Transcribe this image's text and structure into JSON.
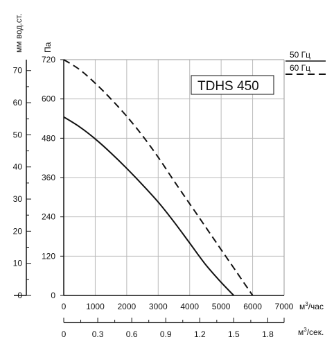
{
  "chart_data": {
    "type": "line",
    "title": "TDHS 450",
    "x": {
      "label": "м³/час",
      "range": [
        0,
        7000
      ],
      "ticks": [
        0,
        1000,
        2000,
        3000,
        4000,
        5000,
        6000,
        7000
      ]
    },
    "x_secondary": {
      "label": "м³/сек.",
      "ticks": [
        "0",
        "0.3",
        "0.6",
        "0.9",
        "1.2",
        "1.5",
        "1.8"
      ],
      "tick_values": [
        0,
        0.3,
        0.6,
        0.9,
        1.2,
        1.5,
        1.8
      ],
      "range": [
        0,
        1.944
      ]
    },
    "y": {
      "label": "Па",
      "range": [
        0,
        720
      ],
      "ticks": [
        0,
        120,
        240,
        360,
        480,
        600,
        720
      ]
    },
    "y_secondary": {
      "label": "мм вод.ст.",
      "range": [
        0,
        73.4
      ],
      "ticks": [
        0,
        10,
        20,
        30,
        40,
        50,
        60,
        70
      ]
    },
    "grid": true,
    "legend_position": "top-right",
    "series": [
      {
        "name": "50 Гц",
        "style": "solid",
        "color": "#111111",
        "x": [
          0,
          500,
          1000,
          1500,
          2000,
          2500,
          3000,
          3500,
          4000,
          4500,
          5000,
          5400
        ],
        "y": [
          545,
          515,
          478,
          435,
          388,
          338,
          285,
          225,
          160,
          95,
          40,
          0
        ]
      },
      {
        "name": "60 Гц",
        "style": "dashed",
        "color": "#111111",
        "x": [
          0,
          500,
          1000,
          1500,
          2000,
          2500,
          3000,
          3500,
          4000,
          4500,
          5000,
          5500,
          6000
        ],
        "y": [
          720,
          690,
          648,
          600,
          547,
          488,
          422,
          350,
          280,
          210,
          140,
          70,
          0
        ]
      }
    ]
  }
}
